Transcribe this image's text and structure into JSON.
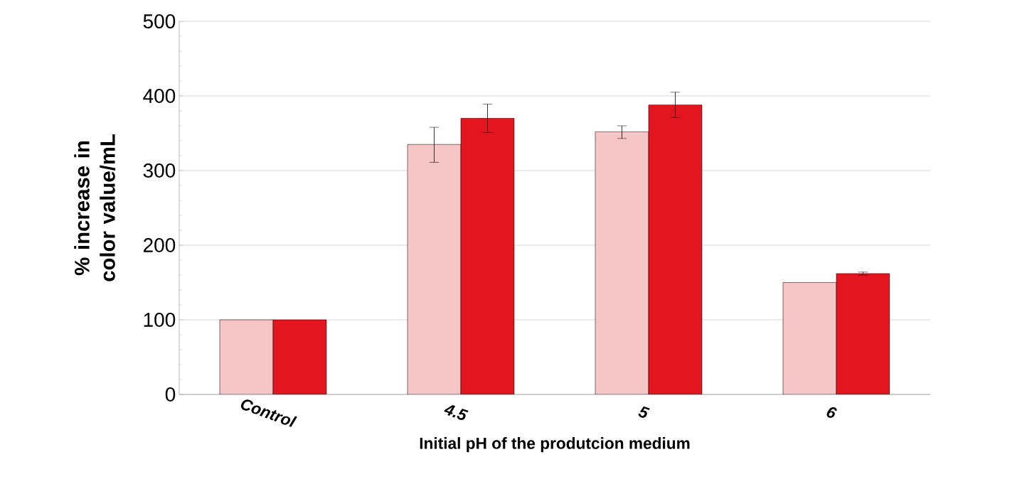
{
  "chart_data": {
    "type": "bar",
    "xlabel": "Initial pH of the produtcion medium",
    "ylabel": "% increase  in  color value/mL",
    "categories": [
      "Control",
      "4.5",
      "5",
      "6"
    ],
    "series": [
      {
        "color": "#f6c6c6",
        "values": [
          100,
          335,
          352,
          150
        ],
        "errors": [
          null,
          [
            311,
            358
          ],
          [
            343,
            360
          ],
          null
        ]
      },
      {
        "color": "#e3151f",
        "values": [
          100,
          370,
          388,
          162
        ],
        "errors": [
          null,
          [
            351,
            389
          ],
          [
            371,
            405
          ],
          [
            160,
            164
          ]
        ]
      }
    ],
    "ylim": [
      0,
      500
    ],
    "yticks": [
      0,
      100,
      200,
      300,
      400,
      500
    ],
    "grid": "y"
  }
}
